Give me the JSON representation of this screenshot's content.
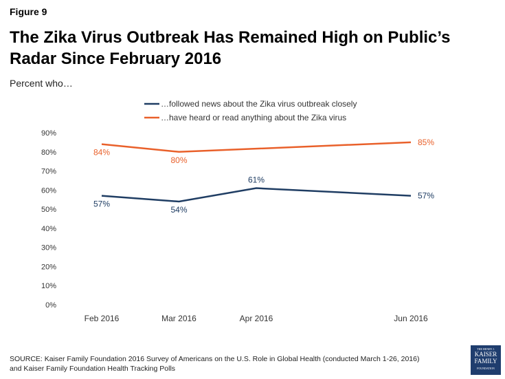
{
  "figure_label": "Figure 9",
  "title": "The Zika Virus Outbreak Has Remained High on Public’s Radar Since February 2016",
  "subtitle": "Percent who…",
  "source": "SOURCE: Kaiser Family Foundation 2016 Survey of Americans on the U.S. Role in Global Health (conducted March 1-26, 2016)",
  "source_line2": "and Kaiser Family Foundation Health Tracking Polls",
  "logo": {
    "small": "THE HENRY J.",
    "line1": "KAISER",
    "line2": "FAMILY",
    "line3": "FOUNDATION"
  },
  "chart_data": {
    "type": "line",
    "categories": [
      "Feb 2016",
      "Mar 2016",
      "Apr 2016",
      "Jun 2016"
    ],
    "x_months": [
      2,
      3,
      4,
      6
    ],
    "ylim": [
      0,
      90
    ],
    "yticks": [
      "0%",
      "10%",
      "20%",
      "30%",
      "40%",
      "50%",
      "60%",
      "70%",
      "80%",
      "90%"
    ],
    "grid": false,
    "legend_position": "top",
    "series": [
      {
        "name": "…followed news about the Zika virus outbreak closely",
        "color": "#1f3d63",
        "values": [
          57,
          54,
          61,
          57
        ],
        "labels": [
          "57%",
          "54%",
          "61%",
          "57%"
        ]
      },
      {
        "name": "…have heard or read anything about the Zika virus",
        "color": "#e9602a",
        "values": [
          84,
          80,
          null,
          85
        ],
        "labels": [
          "84%",
          "80%",
          "",
          "85%"
        ]
      }
    ]
  }
}
